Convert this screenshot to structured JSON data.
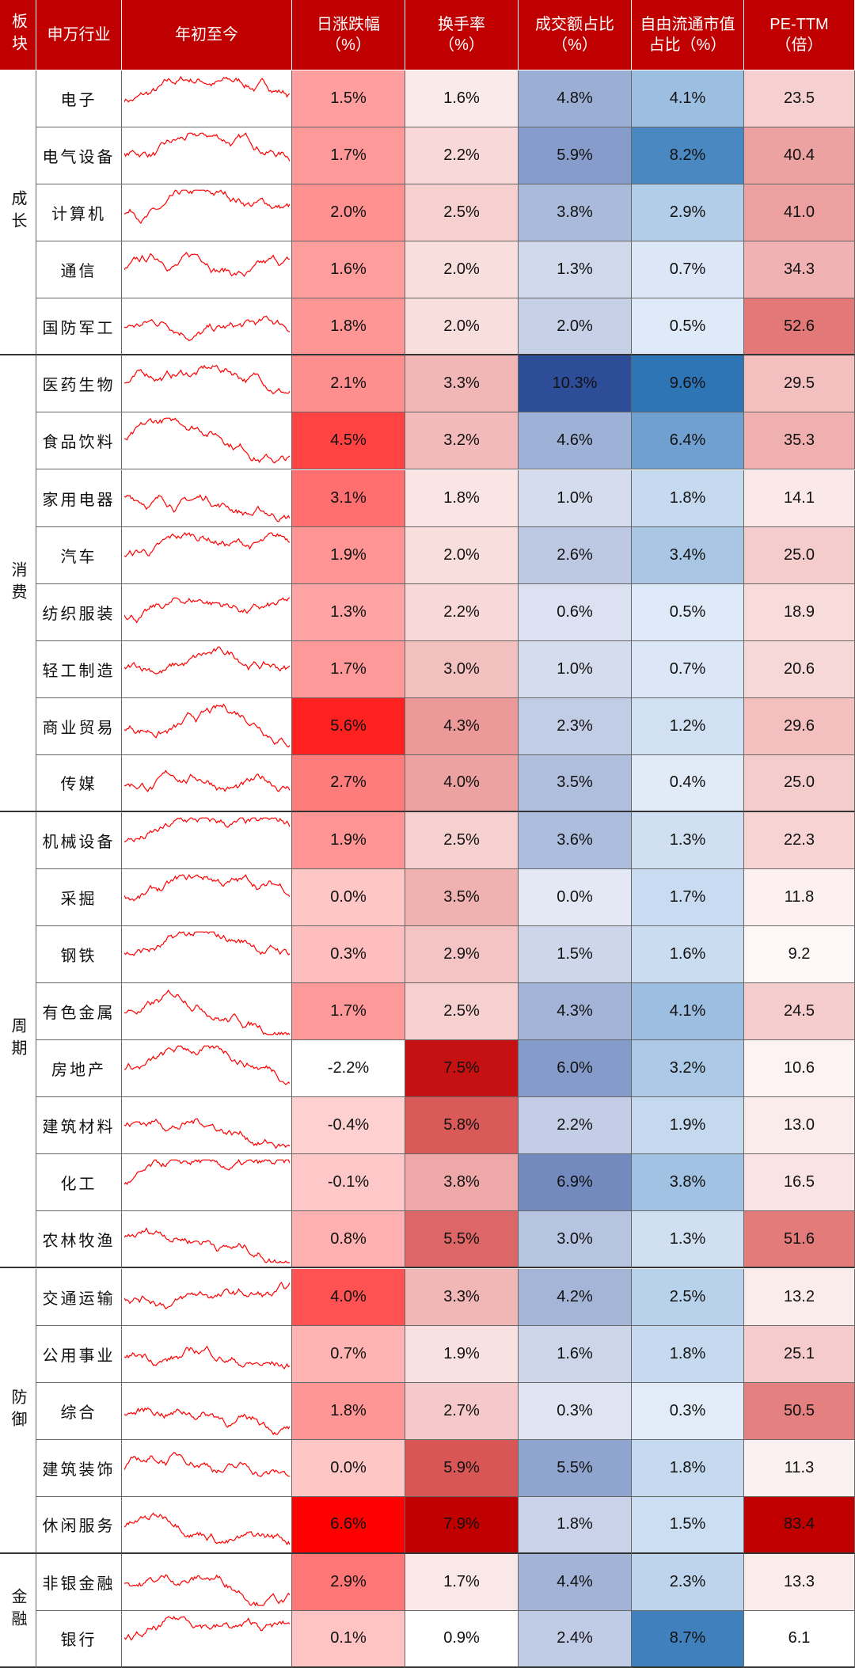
{
  "header": {
    "group": "板块",
    "industry": "申万行业",
    "trend": "年初至今",
    "columns": [
      [
        "日涨跌幅",
        "（%）"
      ],
      [
        "换手率",
        "（%）"
      ],
      [
        "成交额占比",
        "（%）"
      ],
      [
        "自由流通市值",
        "占比（%）"
      ],
      [
        "PE-TTM",
        "（倍）"
      ]
    ]
  },
  "groups": [
    {
      "name": "成长",
      "rows": [
        {
          "industry": "电子",
          "values": [
            "1.5%",
            "1.6%",
            "4.8%",
            "4.1%",
            "23.5"
          ]
        },
        {
          "industry": "电气设备",
          "values": [
            "1.7%",
            "2.2%",
            "5.9%",
            "8.2%",
            "40.4"
          ]
        },
        {
          "industry": "计算机",
          "values": [
            "2.0%",
            "2.5%",
            "3.8%",
            "2.9%",
            "41.0"
          ]
        },
        {
          "industry": "通信",
          "values": [
            "1.6%",
            "2.0%",
            "1.3%",
            "0.7%",
            "34.3"
          ]
        },
        {
          "industry": "国防军工",
          "values": [
            "1.8%",
            "2.0%",
            "2.0%",
            "0.5%",
            "52.6"
          ]
        }
      ]
    },
    {
      "name": "消费",
      "rows": [
        {
          "industry": "医药生物",
          "values": [
            "2.1%",
            "3.3%",
            "10.3%",
            "9.6%",
            "29.5"
          ]
        },
        {
          "industry": "食品饮料",
          "values": [
            "4.5%",
            "3.2%",
            "4.6%",
            "6.4%",
            "35.3"
          ]
        },
        {
          "industry": "家用电器",
          "values": [
            "3.1%",
            "1.8%",
            "1.0%",
            "1.8%",
            "14.1"
          ]
        },
        {
          "industry": "汽车",
          "values": [
            "1.9%",
            "2.0%",
            "2.6%",
            "3.4%",
            "25.0"
          ]
        },
        {
          "industry": "纺织服装",
          "values": [
            "1.3%",
            "2.2%",
            "0.6%",
            "0.5%",
            "18.9"
          ]
        },
        {
          "industry": "轻工制造",
          "values": [
            "1.7%",
            "3.0%",
            "1.0%",
            "0.7%",
            "20.6"
          ]
        },
        {
          "industry": "商业贸易",
          "values": [
            "5.6%",
            "4.3%",
            "2.3%",
            "1.2%",
            "29.6"
          ]
        },
        {
          "industry": "传媒",
          "values": [
            "2.7%",
            "4.0%",
            "3.5%",
            "0.4%",
            "25.0"
          ]
        }
      ]
    },
    {
      "name": "周期",
      "rows": [
        {
          "industry": "机械设备",
          "values": [
            "1.9%",
            "2.5%",
            "3.6%",
            "1.3%",
            "22.3"
          ]
        },
        {
          "industry": "采掘",
          "values": [
            "0.0%",
            "3.5%",
            "0.0%",
            "1.7%",
            "11.8"
          ]
        },
        {
          "industry": "钢铁",
          "values": [
            "0.3%",
            "2.9%",
            "1.5%",
            "1.6%",
            "9.2"
          ]
        },
        {
          "industry": "有色金属",
          "values": [
            "1.7%",
            "2.5%",
            "4.3%",
            "4.1%",
            "24.5"
          ]
        },
        {
          "industry": "房地产",
          "values": [
            "-2.2%",
            "7.5%",
            "6.0%",
            "3.2%",
            "10.6"
          ]
        },
        {
          "industry": "建筑材料",
          "values": [
            "-0.4%",
            "5.8%",
            "2.2%",
            "1.9%",
            "13.0"
          ]
        },
        {
          "industry": "化工",
          "values": [
            "-0.1%",
            "3.8%",
            "6.9%",
            "3.8%",
            "16.5"
          ]
        },
        {
          "industry": "农林牧渔",
          "values": [
            "0.8%",
            "5.5%",
            "3.0%",
            "1.3%",
            "51.6"
          ]
        }
      ]
    },
    {
      "name": "防御",
      "rows": [
        {
          "industry": "交通运输",
          "values": [
            "4.0%",
            "3.3%",
            "4.2%",
            "2.5%",
            "13.2"
          ]
        },
        {
          "industry": "公用事业",
          "values": [
            "0.7%",
            "1.9%",
            "1.6%",
            "1.8%",
            "25.1"
          ]
        },
        {
          "industry": "综合",
          "values": [
            "1.8%",
            "2.7%",
            "0.3%",
            "0.3%",
            "50.5"
          ]
        },
        {
          "industry": "建筑装饰",
          "values": [
            "0.0%",
            "5.9%",
            "5.5%",
            "1.8%",
            "11.3"
          ]
        },
        {
          "industry": "休闲服务",
          "values": [
            "6.6%",
            "7.9%",
            "1.8%",
            "1.5%",
            "83.4"
          ]
        }
      ]
    },
    {
      "name": "金融",
      "rows": [
        {
          "industry": "非银金融",
          "values": [
            "2.9%",
            "1.7%",
            "4.4%",
            "2.3%",
            "13.3"
          ]
        },
        {
          "industry": "银行",
          "values": [
            "0.1%",
            "0.9%",
            "2.4%",
            "8.7%",
            "6.1"
          ]
        }
      ]
    }
  ]
}
